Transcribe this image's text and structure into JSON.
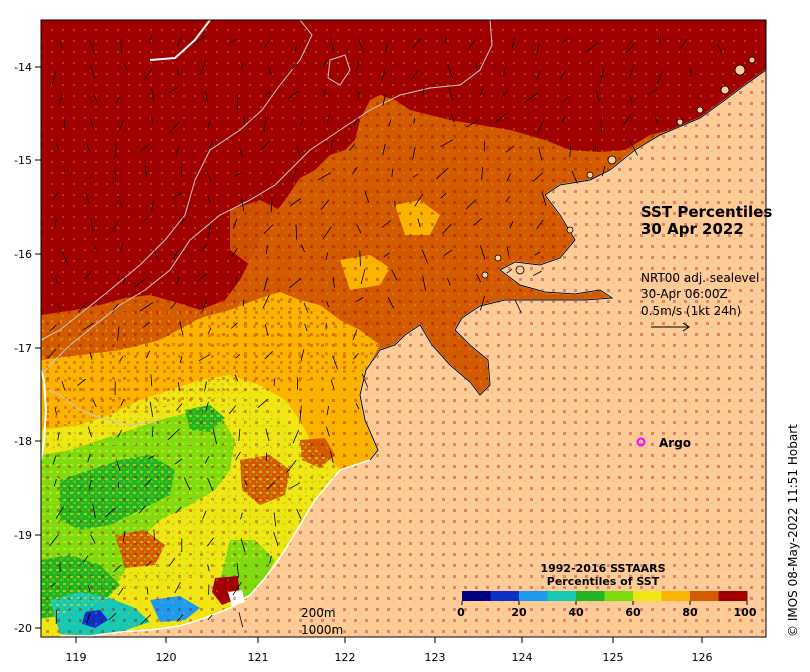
{
  "map": {
    "lon_ticks": [
      "119",
      "120",
      "121",
      "122",
      "123",
      "124",
      "125",
      "126"
    ],
    "lat_ticks": [
      "-14",
      "-15",
      "-16",
      "-17",
      "-18",
      "-19",
      "-20"
    ]
  },
  "title": {
    "line1": "SST Percentiles",
    "line2": "30 Apr 2022"
  },
  "currents": {
    "line1": "NRT00 adj. sealevel",
    "line2": "30-Apr 06:00Z",
    "line3": "0.5m/s (1kt 24h)"
  },
  "argo": {
    "label": "Argo",
    "color": "#ff00ff"
  },
  "isobaths": {
    "a": "200m",
    "b": "1000m"
  },
  "colorbar": {
    "title1": "1992-2016 SSTAARS",
    "title2": "Percentiles of SST",
    "labels": [
      "0",
      "20",
      "40",
      "60",
      "80",
      "100"
    ],
    "colors": [
      "#000080",
      "#0a30c8",
      "#1e9bf0",
      "#17c8b4",
      "#23b423",
      "#7ddc10",
      "#f0e614",
      "#fab400",
      "#d25a00",
      "#a00000"
    ]
  },
  "land_color": "#fdcc99",
  "credit": "© IMOS 08-May-2022 11:51 Hobart"
}
